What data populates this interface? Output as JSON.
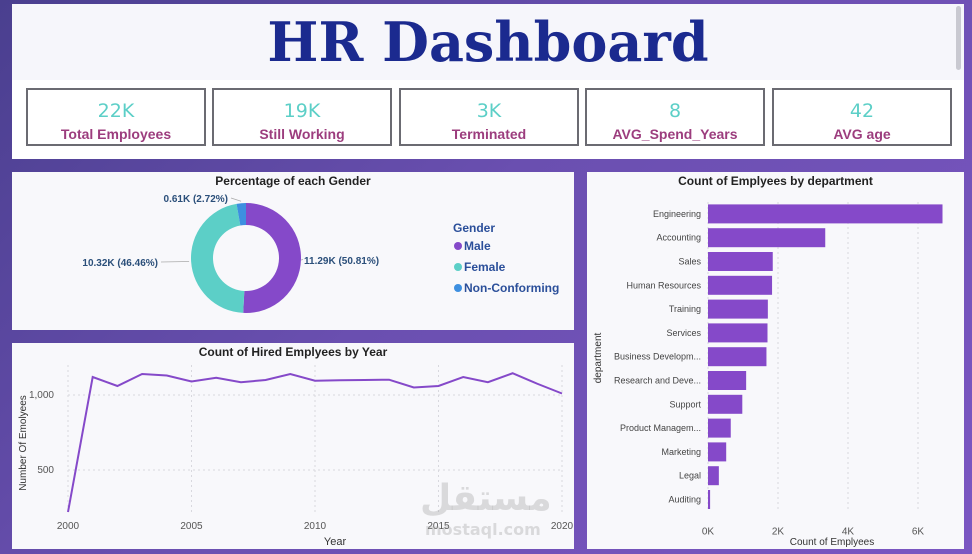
{
  "title": "HR Dashboard",
  "kpis": [
    {
      "value": "22K",
      "label": "Total Employees"
    },
    {
      "value": "19K",
      "label": "Still Working"
    },
    {
      "value": "3K",
      "label": "Terminated"
    },
    {
      "value": "8",
      "label": "AVG_Spend_Years"
    },
    {
      "value": "42",
      "label": "AVG age"
    }
  ],
  "colors": {
    "male": "#8549c9",
    "female": "#5ccfc7",
    "nonconforming": "#3d8fe0",
    "bar": "#8549c9",
    "line": "#8549c9"
  },
  "watermark": {
    "arabic": "مستقل",
    "latin": "mostaql.com"
  },
  "chart_data": [
    {
      "type": "pie",
      "title": "Percentage of each Gender",
      "legend_title": "Gender",
      "legend_position": "right",
      "slices": [
        {
          "name": "Male",
          "value": 11.29,
          "label": "11.29K (50.81%)"
        },
        {
          "name": "Female",
          "value": 10.32,
          "label": "10.32K (46.46%)"
        },
        {
          "name": "Non-Conforming",
          "value": 0.61,
          "label": "0.61K (2.72%)"
        }
      ]
    },
    {
      "type": "line",
      "title": "Count of Hired Emplyees by Year",
      "xlabel": "Year",
      "ylabel": "Number Of Emolyees",
      "x": [
        2000,
        2001,
        2002,
        2003,
        2004,
        2005,
        2006,
        2007,
        2008,
        2009,
        2010,
        2011,
        2012,
        2013,
        2014,
        2015,
        2016,
        2017,
        2018,
        2019,
        2020
      ],
      "y": [
        220,
        1120,
        1060,
        1140,
        1130,
        1090,
        1115,
        1085,
        1100,
        1140,
        1095,
        1098,
        1100,
        1102,
        1050,
        1060,
        1120,
        1085,
        1145,
        1075,
        1010
      ],
      "xticks": [
        "2000",
        "2005",
        "2010",
        "2015",
        "2020"
      ],
      "yticks": [
        "500",
        "1,000"
      ],
      "ylim": [
        200,
        1200
      ],
      "grid": true
    },
    {
      "type": "bar",
      "orientation": "horizontal",
      "title": "Count of Emplyees by department",
      "xlabel": "Count of Emplyees",
      "ylabel": "department",
      "categories": [
        "Engineering",
        "Accounting",
        "Sales",
        "Human Resources",
        "Training",
        "Services",
        "Business Developm...",
        "Research and Deve...",
        "Support",
        "Product Managem...",
        "Marketing",
        "Legal",
        "Auditing"
      ],
      "values": [
        6700,
        3350,
        1850,
        1830,
        1710,
        1700,
        1670,
        1090,
        980,
        650,
        520,
        310,
        60
      ],
      "xticks": [
        "0K",
        "2K",
        "4K",
        "6K"
      ],
      "xlim": [
        0,
        7000
      ],
      "grid": true
    }
  ]
}
